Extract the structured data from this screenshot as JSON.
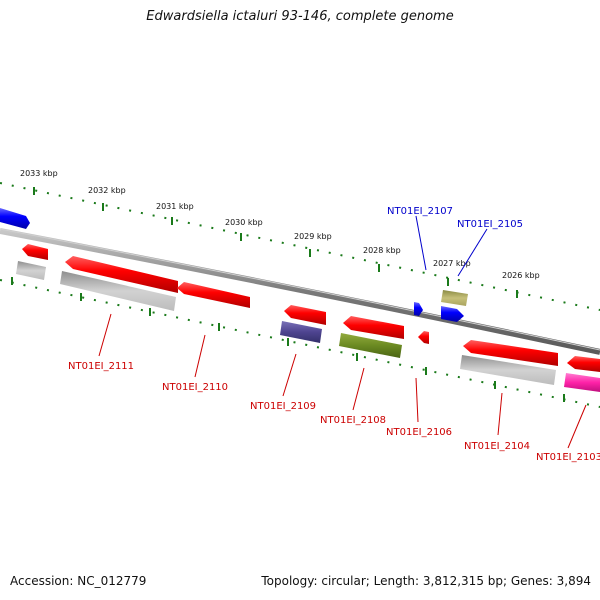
{
  "title": "Edwardsiella ictaluri 93-146, complete genome",
  "footer": {
    "accession": "Accession: NC_012779",
    "stats": "Topology: circular; Length: 3,812,315 bp; Genes: 3,894"
  },
  "scale_labels": [
    "2033 kbp",
    "2032 kbp",
    "2031 kbp",
    "2030 kbp",
    "2029 kbp",
    "2028 kbp",
    "2027 kbp",
    "2026 kbp"
  ],
  "gene_labels": {
    "g2107": "NT01EI_2107",
    "g2105": "NT01EI_2105",
    "g2111": "NT01EI_2111",
    "g2110": "NT01EI_2110",
    "g2109": "NT01EI_2109",
    "g2108": "NT01EI_2108",
    "g2106": "NT01EI_2106",
    "g2104": "NT01EI_2104",
    "g2103": "NT01EI_2103"
  },
  "colors": {
    "forward_label": "#0000cc",
    "reverse_label": "#cc0000",
    "tick_green": "#1a7a1a",
    "backbone": "#808080"
  }
}
